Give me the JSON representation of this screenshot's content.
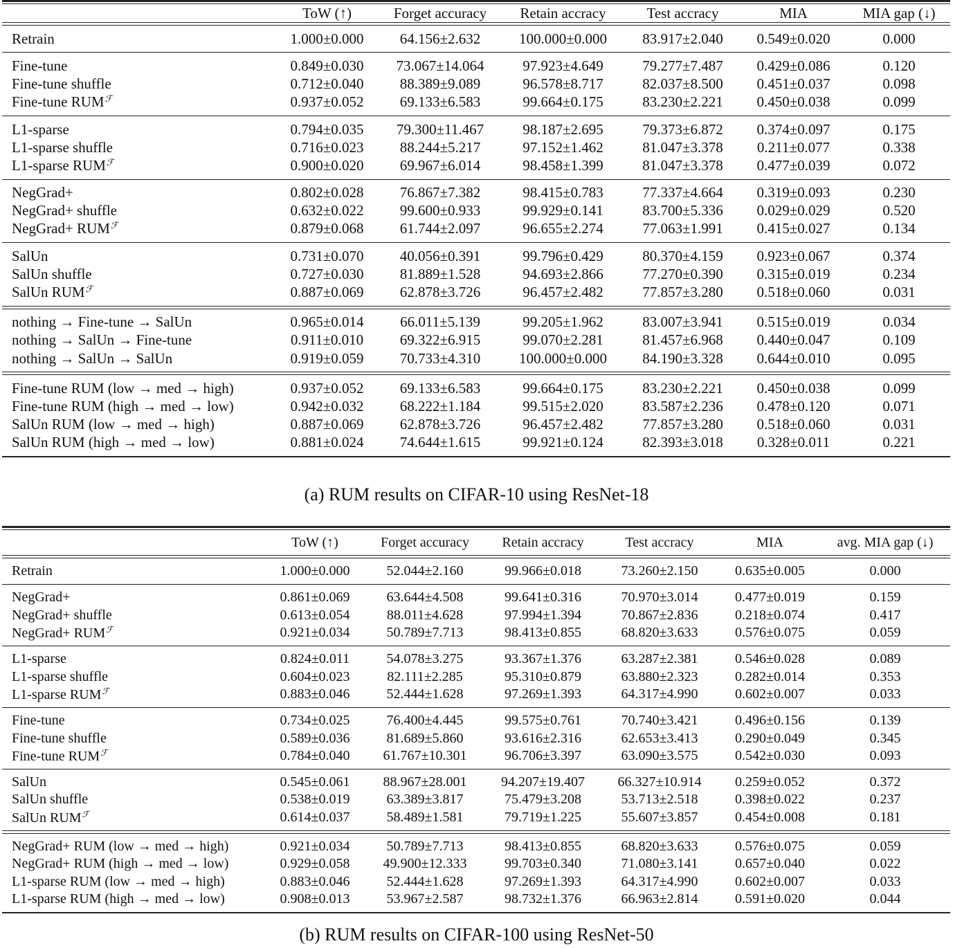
{
  "tables": [
    {
      "caption": "(a) RUM results on CIFAR-10 using ResNet-18",
      "header": [
        "",
        "ToW (↑)",
        "Forget accuracy",
        "Retain accracy",
        "Test accracy",
        "MIA",
        "MIA gap (↓)"
      ],
      "groups": [
        {
          "separator": "double",
          "rows": [
            {
              "method": "Retrain",
              "sup": "",
              "values": [
                "1.000±0.000",
                "64.156±2.632",
                "100.000±0.000",
                "83.917±2.040",
                "0.549±0.020",
                "0.000"
              ]
            }
          ]
        },
        {
          "separator": "single",
          "rows": [
            {
              "method": "Fine-tune",
              "sup": "",
              "values": [
                "0.849±0.030",
                "73.067±14.064",
                "97.923±4.649",
                "79.277±7.487",
                "0.429±0.086",
                "0.120"
              ]
            },
            {
              "method": "Fine-tune shuffle",
              "sup": "",
              "values": [
                "0.712±0.040",
                "88.389±9.089",
                "96.578±8.717",
                "82.037±8.500",
                "0.451±0.037",
                "0.098"
              ]
            },
            {
              "method": "Fine-tune RUM",
              "sup": "ℱ",
              "values": [
                "0.937±0.052",
                "69.133±6.583",
                "99.664±0.175",
                "83.230±2.221",
                "0.450±0.038",
                "0.099"
              ]
            }
          ]
        },
        {
          "separator": "single",
          "rows": [
            {
              "method": "L1-sparse",
              "sup": "",
              "values": [
                "0.794±0.035",
                "79.300±11.467",
                "98.187±2.695",
                "79.373±6.872",
                "0.374±0.097",
                "0.175"
              ]
            },
            {
              "method": "L1-sparse shuffle",
              "sup": "",
              "values": [
                "0.716±0.023",
                "88.244±5.217",
                "97.152±1.462",
                "81.047±3.378",
                "0.211±0.077",
                "0.338"
              ]
            },
            {
              "method": "L1-sparse RUM",
              "sup": "ℱ",
              "values": [
                "0.900±0.020",
                "69.967±6.014",
                "98.458±1.399",
                "81.047±3.378",
                "0.477±0.039",
                "0.072"
              ]
            }
          ]
        },
        {
          "separator": "single",
          "rows": [
            {
              "method": "NegGrad+",
              "sup": "",
              "values": [
                "0.802±0.028",
                "76.867±7.382",
                "98.415±0.783",
                "77.337±4.664",
                "0.319±0.093",
                "0.230"
              ]
            },
            {
              "method": "NegGrad+ shuffle",
              "sup": "",
              "values": [
                "0.632±0.022",
                "99.600±0.933",
                "99.929±0.141",
                "83.700±5.336",
                "0.029±0.029",
                "0.520"
              ]
            },
            {
              "method": "NegGrad+ RUM",
              "sup": "ℱ",
              "values": [
                "0.879±0.068",
                "61.744±2.097",
                "96.655±2.274",
                "77.063±1.991",
                "0.415±0.027",
                "0.134"
              ]
            }
          ]
        },
        {
          "separator": "single",
          "rows": [
            {
              "method": "SalUn",
              "sup": "",
              "values": [
                "0.731±0.070",
                "40.056±0.391",
                "99.796±0.429",
                "80.370±4.159",
                "0.923±0.067",
                "0.374"
              ]
            },
            {
              "method": "SalUn shuffle",
              "sup": "",
              "values": [
                "0.727±0.030",
                "81.889±1.528",
                "94.693±2.866",
                "77.270±0.390",
                "0.315±0.019",
                "0.234"
              ]
            },
            {
              "method": "SalUn RUM",
              "sup": "ℱ",
              "values": [
                "0.887±0.069",
                "62.878±3.726",
                "96.457±2.482",
                "77.857±3.280",
                "0.518±0.060",
                "0.031"
              ]
            }
          ]
        },
        {
          "separator": "double",
          "rows": [
            {
              "method": "nothing → Fine-tune → SalUn",
              "sup": "",
              "values": [
                "0.965±0.014",
                "66.011±5.139",
                "99.205±1.962",
                "83.007±3.941",
                "0.515±0.019",
                "0.034"
              ]
            },
            {
              "method": "nothing → SalUn → Fine-tune",
              "sup": "",
              "values": [
                "0.911±0.010",
                "69.322±6.915",
                "99.070±2.281",
                "81.457±6.968",
                "0.440±0.047",
                "0.109"
              ]
            },
            {
              "method": "nothing → SalUn → SalUn",
              "sup": "",
              "values": [
                "0.919±0.059",
                "70.733±4.310",
                "100.000±0.000",
                "84.190±3.328",
                "0.644±0.010",
                "0.095"
              ]
            }
          ]
        },
        {
          "separator": "double",
          "rows": [
            {
              "method": "Fine-tune RUM (low → med → high)",
              "sup": "",
              "values": [
                "0.937±0.052",
                "69.133±6.583",
                "99.664±0.175",
                "83.230±2.221",
                "0.450±0.038",
                "0.099"
              ]
            },
            {
              "method": "Fine-tune RUM (high → med → low)",
              "sup": "",
              "values": [
                "0.942±0.032",
                "68.222±1.184",
                "99.515±2.020",
                "83.587±2.236",
                "0.478±0.120",
                "0.071"
              ]
            },
            {
              "method": "SalUn RUM (low → med → high)",
              "sup": "",
              "values": [
                "0.887±0.069",
                "62.878±3.726",
                "96.457±2.482",
                "77.857±3.280",
                "0.518±0.060",
                "0.031"
              ]
            },
            {
              "method": "SalUn RUM (high → med → low)",
              "sup": "",
              "values": [
                "0.881±0.024",
                "74.644±1.615",
                "99.921±0.124",
                "82.393±3.018",
                "0.328±0.011",
                "0.221"
              ]
            }
          ]
        }
      ]
    },
    {
      "caption": "(b) RUM results on CIFAR-100 using ResNet-50",
      "header": [
        "",
        "ToW (↑)",
        "Forget accuracy",
        "Retain accracy",
        "Test accracy",
        "MIA",
        "avg. MIA gap (↓)"
      ],
      "groups": [
        {
          "separator": "double",
          "rows": [
            {
              "method": "Retrain",
              "sup": "",
              "values": [
                "1.000±0.000",
                "52.044±2.160",
                "99.966±0.018",
                "73.260±2.150",
                "0.635±0.005",
                "0.000"
              ]
            }
          ]
        },
        {
          "separator": "single",
          "rows": [
            {
              "method": "NegGrad+",
              "sup": "",
              "values": [
                "0.861±0.069",
                "63.644±4.508",
                "99.641±0.316",
                "70.970±3.014",
                "0.477±0.019",
                "0.159"
              ]
            },
            {
              "method": "NegGrad+ shuffle",
              "sup": "",
              "values": [
                "0.613±0.054",
                "88.011±4.628",
                "97.994±1.394",
                "70.867±2.836",
                "0.218±0.074",
                "0.417"
              ]
            },
            {
              "method": "NegGrad+ RUM",
              "sup": "ℱ",
              "values": [
                "0.921±0.034",
                "50.789±7.713",
                "98.413±0.855",
                "68.820±3.633",
                "0.576±0.075",
                "0.059"
              ]
            }
          ]
        },
        {
          "separator": "single",
          "rows": [
            {
              "method": "L1-sparse",
              "sup": "",
              "values": [
                "0.824±0.011",
                "54.078±3.275",
                "93.367±1.376",
                "63.287±2.381",
                "0.546±0.028",
                "0.089"
              ]
            },
            {
              "method": "L1-sparse shuffle",
              "sup": "",
              "values": [
                "0.604±0.023",
                "82.111±2.285",
                "95.310±0.879",
                "63.880±2.323",
                "0.282±0.014",
                "0.353"
              ]
            },
            {
              "method": "L1-sparse RUM",
              "sup": "ℱ",
              "values": [
                "0.883±0.046",
                "52.444±1.628",
                "97.269±1.393",
                "64.317±4.990",
                "0.602±0.007",
                "0.033"
              ]
            }
          ]
        },
        {
          "separator": "single",
          "rows": [
            {
              "method": "Fine-tune",
              "sup": "",
              "values": [
                "0.734±0.025",
                "76.400±4.445",
                "99.575±0.761",
                "70.740±3.421",
                "0.496±0.156",
                "0.139"
              ]
            },
            {
              "method": "Fine-tune shuffle",
              "sup": "",
              "values": [
                "0.589±0.036",
                "81.689±5.860",
                "93.616±2.316",
                "62.653±3.413",
                "0.290±0.049",
                "0.345"
              ]
            },
            {
              "method": "Fine-tune RUM",
              "sup": "ℱ",
              "values": [
                "0.784±0.040",
                "61.767±10.301",
                "96.706±3.397",
                "63.090±3.575",
                "0.542±0.030",
                "0.093"
              ]
            }
          ]
        },
        {
          "separator": "single",
          "rows": [
            {
              "method": "SalUn",
              "sup": "",
              "values": [
                "0.545±0.061",
                "88.967±28.001",
                "94.207±19.407",
                "66.327±10.914",
                "0.259±0.052",
                "0.372"
              ]
            },
            {
              "method": "SalUn shuffle",
              "sup": "",
              "values": [
                "0.538±0.019",
                "63.389±3.817",
                "75.479±3.208",
                "53.713±2.518",
                "0.398±0.022",
                "0.237"
              ]
            },
            {
              "method": "SalUn RUM",
              "sup": "ℱ",
              "values": [
                "0.614±0.037",
                "58.489±1.581",
                "79.719±1.225",
                "55.607±3.857",
                "0.454±0.008",
                "0.181"
              ]
            }
          ]
        },
        {
          "separator": "double",
          "rows": [
            {
              "method": "NegGrad+ RUM (low → med → high)",
              "sup": "",
              "values": [
                "0.921±0.034",
                "50.789±7.713",
                "98.413±0.855",
                "68.820±3.633",
                "0.576±0.075",
                "0.059"
              ]
            },
            {
              "method": "NegGrad+ RUM (high → med → low)",
              "sup": "",
              "values": [
                "0.929±0.058",
                "49.900±12.333",
                "99.703±0.340",
                "71.080±3.141",
                "0.657±0.040",
                "0.022"
              ]
            },
            {
              "method": "L1-sparse RUM (low → med → high)",
              "sup": "",
              "values": [
                "0.883±0.046",
                "52.444±1.628",
                "97.269±1.393",
                "64.317±4.990",
                "0.602±0.007",
                "0.033"
              ]
            },
            {
              "method": "L1-sparse RUM (high → med → low)",
              "sup": "",
              "values": [
                "0.908±0.013",
                "53.967±2.587",
                "98.732±1.376",
                "66.963±2.814",
                "0.591±0.020",
                "0.044"
              ]
            }
          ]
        }
      ]
    }
  ]
}
